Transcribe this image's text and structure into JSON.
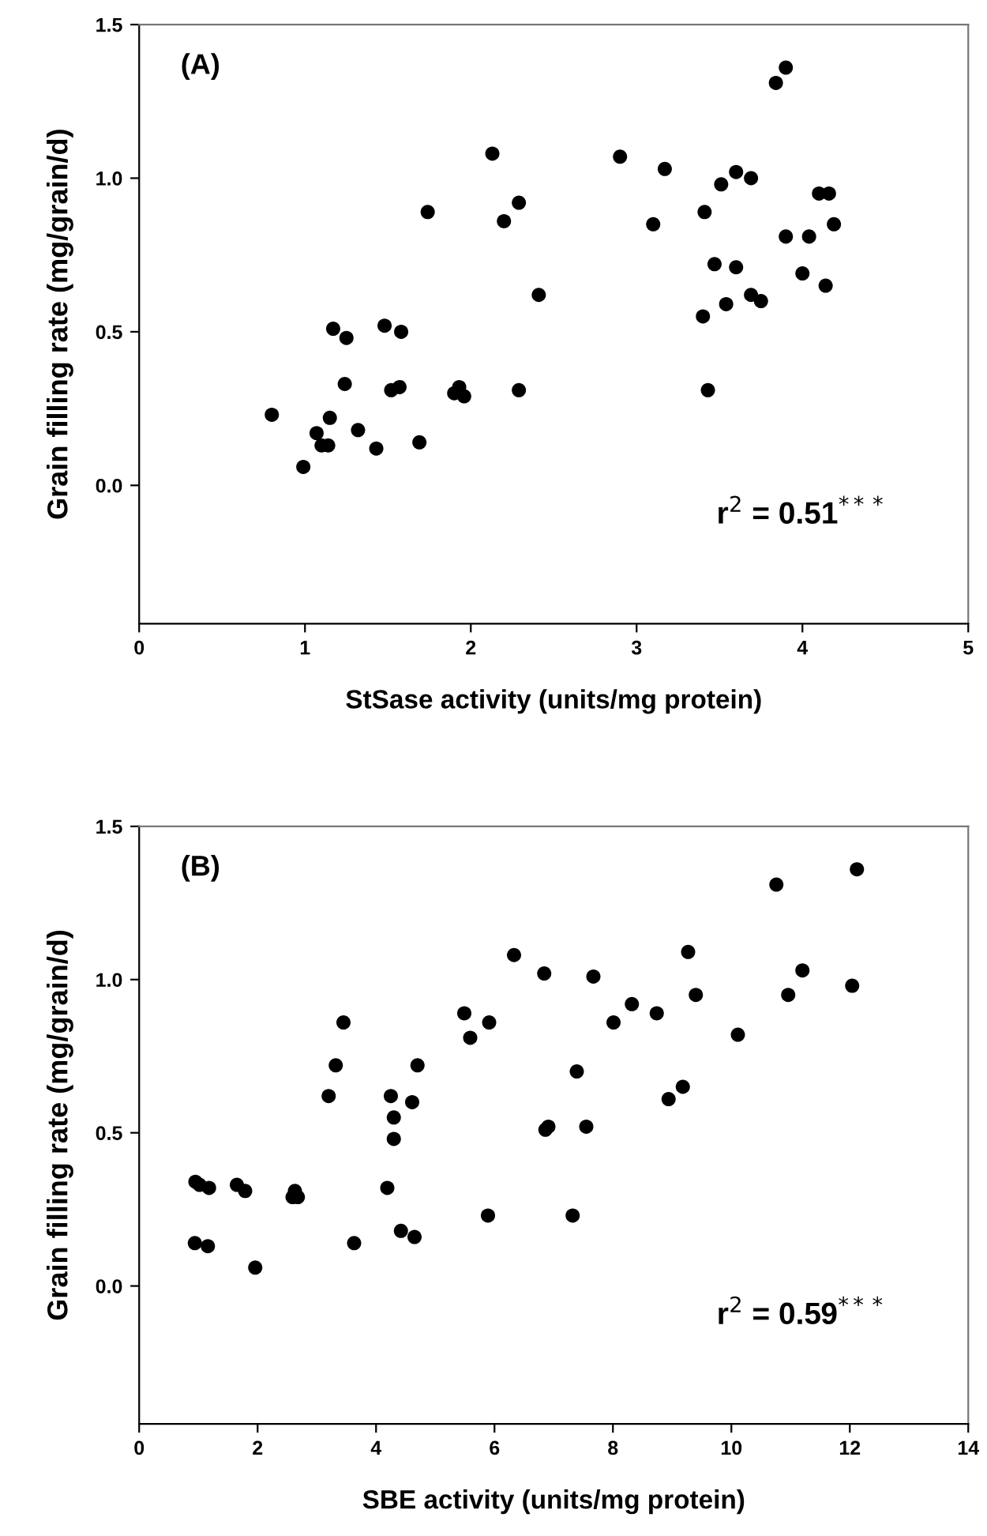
{
  "chart_data": [
    {
      "type": "scatter",
      "xlabel": "StSase activity (units/mg protein)",
      "ylabel": "Grain filling rate (mg/grain/d)",
      "annotations": [
        "(A)",
        "r$^{2}$ = 0.51$^{***}$"
      ],
      "marker": "circle",
      "grid": false,
      "xlim": [
        0,
        5
      ],
      "ylim": [
        -0.45,
        1.5
      ],
      "xticks": [
        0,
        1,
        2,
        3,
        4,
        5
      ],
      "yticks": [
        {
          "value": 0.0,
          "label": "0.0"
        },
        {
          "value": 0.5,
          "label": "0.5"
        },
        {
          "value": 1.0,
          "label": "1.0"
        },
        {
          "value": 1.5,
          "label": "1.5"
        }
      ],
      "series": [
        {
          "color": "#000000",
          "x": [
            0.8,
            0.99,
            1.07,
            1.1,
            1.14,
            1.15,
            1.17,
            1.25,
            1.24,
            1.32,
            1.43,
            1.48,
            1.52,
            1.57,
            1.58,
            1.69,
            1.74,
            1.9,
            1.93,
            1.96,
            2.13,
            2.2,
            2.29,
            2.29,
            2.41,
            2.9,
            3.1,
            3.17,
            3.4,
            3.41,
            3.43,
            3.47,
            3.51,
            3.54,
            3.6,
            3.6,
            3.69,
            3.69,
            3.75,
            3.84,
            3.9,
            3.9,
            4.0,
            4.04,
            4.1,
            4.16,
            4.14,
            4.19
          ],
          "values": [
            0.23,
            0.06,
            0.17,
            0.13,
            0.13,
            0.22,
            0.51,
            0.48,
            0.33,
            0.18,
            0.12,
            0.52,
            0.31,
            0.32,
            0.5,
            0.14,
            0.89,
            0.3,
            0.32,
            0.29,
            1.08,
            0.86,
            0.92,
            0.31,
            0.62,
            1.07,
            0.85,
            1.03,
            0.55,
            0.89,
            0.31,
            0.72,
            0.98,
            0.59,
            1.02,
            0.71,
            1.0,
            0.62,
            0.6,
            1.31,
            1.36,
            0.81,
            0.69,
            0.81,
            0.95,
            0.95,
            0.65,
            0.85
          ]
        }
      ]
    },
    {
      "type": "scatter",
      "xlabel": "SBE activity (units/mg protein)",
      "ylabel": "Grain filling rate (mg/grain/d)",
      "annotations": [
        "(B)",
        "r$^{2}$ = 0.59$^{***}$"
      ],
      "marker": "circle",
      "grid": false,
      "xlim": [
        0,
        14
      ],
      "ylim": [
        -0.45,
        1.5
      ],
      "xticks": [
        0,
        2,
        4,
        6,
        8,
        10,
        12,
        14
      ],
      "yticks": [
        {
          "value": 0.0,
          "label": "0.0"
        },
        {
          "value": 0.5,
          "label": "0.5"
        },
        {
          "value": 1.0,
          "label": "1.0"
        },
        {
          "value": 1.5,
          "label": "1.5"
        }
      ],
      "series": [
        {
          "color": "#000000",
          "x": [
            0.95,
            1.02,
            1.18,
            0.94,
            1.16,
            1.65,
            1.79,
            1.96,
            2.59,
            2.68,
            2.63,
            3.2,
            3.32,
            3.45,
            3.63,
            4.19,
            4.25,
            4.3,
            4.3,
            4.42,
            4.65,
            4.61,
            4.7,
            5.49,
            5.59,
            5.91,
            5.89,
            6.33,
            6.84,
            7.67,
            7.39,
            6.86,
            6.91,
            7.55,
            7.32,
            8.01,
            8.32,
            8.74,
            8.94,
            9.18,
            9.27,
            9.4,
            10.11,
            10.76,
            10.96,
            11.2,
            12.04,
            12.12
          ],
          "values": [
            0.34,
            0.33,
            0.32,
            0.14,
            0.13,
            0.33,
            0.31,
            0.06,
            0.29,
            0.29,
            0.31,
            0.62,
            0.72,
            0.86,
            0.14,
            0.32,
            0.62,
            0.55,
            0.48,
            0.18,
            0.16,
            0.6,
            0.72,
            0.89,
            0.81,
            0.86,
            0.23,
            1.08,
            1.02,
            1.01,
            0.7,
            0.51,
            0.52,
            0.52,
            0.23,
            0.86,
            0.92,
            0.89,
            0.61,
            0.65,
            1.09,
            0.95,
            0.82,
            1.31,
            0.95,
            1.03,
            0.98,
            1.36
          ]
        }
      ]
    }
  ]
}
